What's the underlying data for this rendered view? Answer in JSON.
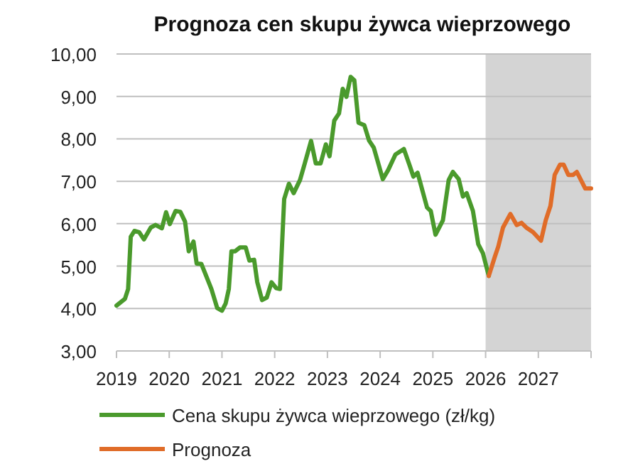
{
  "chart_data": {
    "type": "line",
    "title": "Prognoza cen skupu żywca wieprzowego",
    "series": [
      {
        "name": "Cena skupu żywca wieprzowego (zł/kg)",
        "color": "#4a9a2c",
        "x": [
          2019.0,
          2019.16,
          2019.22,
          2019.27,
          2019.34,
          2019.43,
          2019.52,
          2019.65,
          2019.74,
          2019.86,
          2019.94,
          2020.01,
          2020.12,
          2020.21,
          2020.3,
          2020.37,
          2020.46,
          2020.52,
          2020.61,
          2020.71,
          2020.8,
          2020.91,
          2021.0,
          2021.07,
          2021.13,
          2021.18,
          2021.25,
          2021.34,
          2021.45,
          2021.52,
          2021.61,
          2021.67,
          2021.76,
          2021.85,
          2021.94,
          2022.03,
          2022.1,
          2022.18,
          2022.27,
          2022.36,
          2022.48,
          2022.57,
          2022.69,
          2022.78,
          2022.87,
          2022.97,
          2023.04,
          2023.13,
          2023.22,
          2023.29,
          2023.36,
          2023.44,
          2023.51,
          2023.59,
          2023.7,
          2023.79,
          2023.88,
          2024.05,
          2024.15,
          2024.29,
          2024.45,
          2024.56,
          2024.63,
          2024.71,
          2024.89,
          2024.96,
          2025.05,
          2025.19,
          2025.3,
          2025.38,
          2025.49,
          2025.57,
          2025.64,
          2025.76,
          2025.86,
          2025.95,
          2026.06
        ],
        "values": [
          4.07,
          4.23,
          4.46,
          5.69,
          5.83,
          5.8,
          5.63,
          5.91,
          5.97,
          5.89,
          6.27,
          5.99,
          6.3,
          6.28,
          6.05,
          5.35,
          5.58,
          5.06,
          5.05,
          4.74,
          4.46,
          4.01,
          3.95,
          4.12,
          4.46,
          5.35,
          5.35,
          5.44,
          5.44,
          5.13,
          5.15,
          4.62,
          4.2,
          4.26,
          4.62,
          4.48,
          4.46,
          6.58,
          6.94,
          6.72,
          7.03,
          7.42,
          7.95,
          7.42,
          7.42,
          7.87,
          7.59,
          8.43,
          8.6,
          9.18,
          8.99,
          9.46,
          9.38,
          8.38,
          8.32,
          7.96,
          7.79,
          7.05,
          7.26,
          7.63,
          7.76,
          7.37,
          7.11,
          7.2,
          6.38,
          6.3,
          5.74,
          6.08,
          7.03,
          7.22,
          7.05,
          6.64,
          6.72,
          6.3,
          5.52,
          5.3,
          4.77
        ]
      },
      {
        "name": "Prognoza",
        "color": "#e06c28",
        "x": [
          2026.06,
          2026.18,
          2026.24,
          2026.33,
          2026.47,
          2026.59,
          2026.68,
          2026.77,
          2026.9,
          2027.05,
          2027.14,
          2027.23,
          2027.31,
          2027.41,
          2027.48,
          2027.57,
          2027.66,
          2027.73,
          2027.89,
          2028.0
        ],
        "values": [
          4.77,
          5.24,
          5.46,
          5.91,
          6.23,
          5.97,
          6.02,
          5.91,
          5.8,
          5.6,
          6.08,
          6.42,
          7.15,
          7.39,
          7.39,
          7.15,
          7.15,
          7.22,
          6.83,
          6.83
        ]
      }
    ],
    "xlim": [
      2019,
      2028
    ],
    "xticks": [
      2019,
      2020,
      2021,
      2022,
      2023,
      2024,
      2025,
      2026,
      2027,
      {
        "value": 2028,
        "label": null
      }
    ],
    "ylim": [
      3,
      10
    ],
    "yticks": [
      {
        "value": 3,
        "label": "3,00"
      },
      {
        "value": 4,
        "label": "4,00"
      },
      {
        "value": 5,
        "label": "5,00"
      },
      {
        "value": 6,
        "label": "6,00"
      },
      {
        "value": 7,
        "label": "7,00"
      },
      {
        "value": 8,
        "label": "8,00"
      },
      {
        "value": 9,
        "label": "9,00"
      },
      {
        "value": 10,
        "label": "10,00"
      }
    ],
    "bands": [
      {
        "axis": "x",
        "from": 2026,
        "to": 2028,
        "color": "#d4d4d4"
      }
    ],
    "grid": "y",
    "legend": "bottom",
    "marker": "none",
    "line_style": "solid"
  }
}
